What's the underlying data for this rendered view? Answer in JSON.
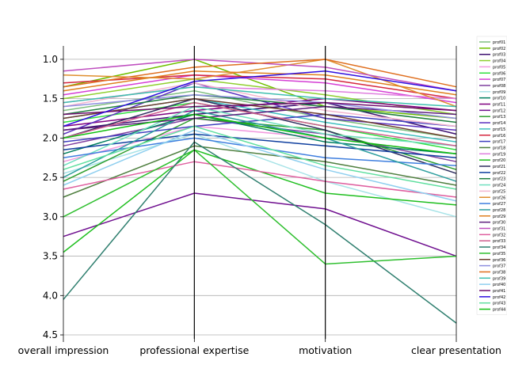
{
  "chart_data": {
    "type": "parallel-coordinates",
    "title": "",
    "axes": [
      "overall impression",
      "professional expertise",
      "motivation",
      "clear presentation"
    ],
    "ylim": [
      4.55,
      0.83
    ],
    "yticks": [
      1.0,
      1.5,
      2.0,
      2.5,
      3.0,
      3.5,
      4.0,
      4.5
    ],
    "ytick_labels": [
      "1.0",
      "1.5",
      "2.0",
      "2.5",
      "3.0",
      "3.5",
      "4.0",
      "4.5"
    ],
    "grid": true,
    "legend_position": "right",
    "series": [
      {
        "name": "prof01",
        "color": "#7fbf7f",
        "values": [
          1.65,
          1.4,
          1.75,
          2.0
        ]
      },
      {
        "name": "prof02",
        "color": "#6fbf00",
        "values": [
          1.35,
          1.0,
          1.6,
          1.75
        ]
      },
      {
        "name": "prof03",
        "color": "#3b0f6f",
        "values": [
          1.9,
          1.7,
          1.55,
          1.95
        ]
      },
      {
        "name": "prof04",
        "color": "#8fcf2f",
        "values": [
          1.5,
          1.25,
          1.45,
          1.7
        ]
      },
      {
        "name": "prof05",
        "color": "#f29adf",
        "values": [
          2.3,
          1.85,
          2.0,
          2.2
        ]
      },
      {
        "name": "prof06",
        "color": "#2fdf3f",
        "values": [
          1.8,
          1.55,
          1.85,
          2.15
        ]
      },
      {
        "name": "prof07",
        "color": "#d53fd5",
        "values": [
          1.45,
          1.2,
          1.3,
          1.55
        ]
      },
      {
        "name": "prof08",
        "color": "#7f3f9f",
        "values": [
          2.1,
          1.75,
          1.95,
          2.3
        ]
      },
      {
        "name": "prof09",
        "color": "#a7e3e7",
        "values": [
          2.45,
          1.95,
          2.55,
          3.0
        ]
      },
      {
        "name": "prof10",
        "color": "#007f5f",
        "values": [
          2.2,
          1.7,
          2.05,
          2.2
        ]
      },
      {
        "name": "prof11",
        "color": "#7f007f",
        "values": [
          1.85,
          1.65,
          1.5,
          1.65
        ]
      },
      {
        "name": "prof12",
        "color": "#6f0f8f",
        "values": [
          3.25,
          2.7,
          2.9,
          3.5
        ]
      },
      {
        "name": "prof13",
        "color": "#2f9f2f",
        "values": [
          2.55,
          1.75,
          1.9,
          2.4
        ]
      },
      {
        "name": "prof14",
        "color": "#5a2fbf",
        "values": [
          1.95,
          1.3,
          1.75,
          1.9
        ]
      },
      {
        "name": "prof15",
        "color": "#3fbfbf",
        "values": [
          1.75,
          1.5,
          1.8,
          2.05
        ]
      },
      {
        "name": "prof16",
        "color": "#d5273f",
        "values": [
          1.3,
          1.2,
          1.25,
          1.5
        ]
      },
      {
        "name": "prof17",
        "color": "#3f3fbf",
        "values": [
          2.05,
          1.85,
          1.7,
          1.85
        ]
      },
      {
        "name": "prof18",
        "color": "#4f7f3f",
        "values": [
          2.75,
          2.1,
          2.3,
          2.6
        ]
      },
      {
        "name": "prof19",
        "color": "#df7fdf",
        "values": [
          1.55,
          1.35,
          1.4,
          1.5
        ]
      },
      {
        "name": "prof20",
        "color": "#1fbf1f",
        "values": [
          3.45,
          2.15,
          2.7,
          2.85
        ]
      },
      {
        "name": "prof21",
        "color": "#2f2f5f",
        "values": [
          2.0,
          1.5,
          1.9,
          2.45
        ]
      },
      {
        "name": "prof22",
        "color": "#0f3f9f",
        "values": [
          2.15,
          1.95,
          2.1,
          2.25
        ]
      },
      {
        "name": "prof23",
        "color": "#1f7f3f",
        "values": [
          1.7,
          1.45,
          1.6,
          1.8
        ]
      },
      {
        "name": "prof24",
        "color": "#6fdfbf",
        "values": [
          2.35,
          1.6,
          1.95,
          2.1
        ]
      },
      {
        "name": "prof25",
        "color": "#f2b5cf",
        "values": [
          1.6,
          1.3,
          1.65,
          1.85
        ]
      },
      {
        "name": "prof26",
        "color": "#df8f2f",
        "values": [
          1.2,
          1.25,
          1.0,
          1.6
        ]
      },
      {
        "name": "prof27",
        "color": "#3f7fdf",
        "values": [
          2.25,
          2.0,
          2.25,
          2.35
        ]
      },
      {
        "name": "prof28",
        "color": "#2f9f9f",
        "values": [
          2.5,
          1.65,
          2.0,
          2.55
        ]
      },
      {
        "name": "prof29",
        "color": "#df7f1f",
        "values": [
          1.4,
          1.15,
          1.2,
          1.45
        ]
      },
      {
        "name": "prof30",
        "color": "#5f1f7f",
        "values": [
          1.9,
          1.75,
          1.6,
          1.7
        ]
      },
      {
        "name": "prof31",
        "color": "#bf4fbf",
        "values": [
          1.15,
          1.0,
          1.1,
          1.4
        ]
      },
      {
        "name": "prof32",
        "color": "#df5f9f",
        "values": [
          2.65,
          2.3,
          2.55,
          2.75
        ]
      },
      {
        "name": "prof33",
        "color": "#cf5f8f",
        "values": [
          2.0,
          1.55,
          1.85,
          2.1
        ]
      },
      {
        "name": "prof34",
        "color": "#2f7f6f",
        "values": [
          4.05,
          2.05,
          3.1,
          4.35
        ]
      },
      {
        "name": "prof35",
        "color": "#2fbf2f",
        "values": [
          3.0,
          2.15,
          3.6,
          3.5
        ]
      },
      {
        "name": "prof36",
        "color": "#6f3f2f",
        "values": [
          1.75,
          1.5,
          1.7,
          2.0
        ]
      },
      {
        "name": "prof37",
        "color": "#8f8fdf",
        "values": [
          1.6,
          1.45,
          1.55,
          1.75
        ]
      },
      {
        "name": "prof38",
        "color": "#df6f1f",
        "values": [
          1.35,
          1.1,
          1.0,
          1.35
        ]
      },
      {
        "name": "prof39",
        "color": "#3fbfaf",
        "values": [
          1.55,
          1.35,
          1.5,
          1.6
        ]
      },
      {
        "name": "prof40",
        "color": "#8fcfef",
        "values": [
          2.6,
          1.9,
          2.4,
          2.8
        ]
      },
      {
        "name": "prof41",
        "color": "#6f0f6f",
        "values": [
          1.7,
          1.6,
          1.55,
          1.65
        ]
      },
      {
        "name": "prof42",
        "color": "#2f0fdf",
        "values": [
          1.85,
          1.28,
          1.15,
          1.4
        ]
      },
      {
        "name": "prof43",
        "color": "#5fdf9f",
        "values": [
          2.4,
          1.85,
          2.35,
          2.65
        ]
      },
      {
        "name": "prof44",
        "color": "#0fbf0f",
        "values": [
          2.0,
          1.7,
          2.0,
          2.2
        ]
      }
    ]
  }
}
